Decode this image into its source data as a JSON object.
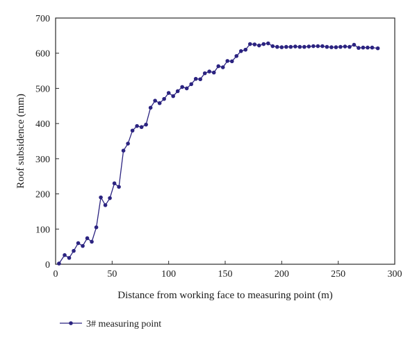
{
  "chart_data": {
    "type": "line",
    "title": "",
    "xlabel": "Distance from working face to measuring point (m)",
    "ylabel": "Roof subsidence (mm)",
    "xlim": [
      0,
      300
    ],
    "ylim": [
      0,
      700
    ],
    "x_ticks": [
      0,
      50,
      100,
      150,
      200,
      250,
      300
    ],
    "y_ticks": [
      0,
      100,
      200,
      300,
      400,
      500,
      600,
      700
    ],
    "grid": false,
    "legend_position": "bottom-left",
    "series": [
      {
        "name": "3# measuring point",
        "color": "#2b2380",
        "x": [
          3,
          8,
          12,
          16,
          20,
          24,
          28,
          32,
          36,
          40,
          44,
          48,
          52,
          56,
          60,
          64,
          68,
          72,
          76,
          80,
          84,
          88,
          92,
          96,
          100,
          104,
          108,
          112,
          116,
          120,
          124,
          128,
          132,
          136,
          140,
          144,
          148,
          152,
          156,
          160,
          164,
          168,
          172,
          176,
          180,
          184,
          188,
          192,
          196,
          200,
          204,
          208,
          212,
          216,
          220,
          224,
          228,
          232,
          236,
          240,
          244,
          248,
          252,
          256,
          260,
          264,
          268,
          272,
          276,
          280,
          285
        ],
        "y": [
          2,
          26,
          18,
          38,
          60,
          52,
          74,
          64,
          105,
          190,
          168,
          188,
          230,
          220,
          323,
          343,
          380,
          393,
          390,
          397,
          445,
          465,
          458,
          470,
          487,
          478,
          492,
          504,
          500,
          512,
          527,
          526,
          543,
          548,
          545,
          563,
          560,
          578,
          577,
          592,
          606,
          610,
          626,
          625,
          622,
          626,
          628,
          620,
          618,
          617,
          618,
          618,
          619,
          618,
          618,
          619,
          620,
          620,
          620,
          618,
          617,
          617,
          618,
          619,
          618,
          624,
          615,
          616,
          616,
          616,
          614
        ]
      }
    ]
  }
}
